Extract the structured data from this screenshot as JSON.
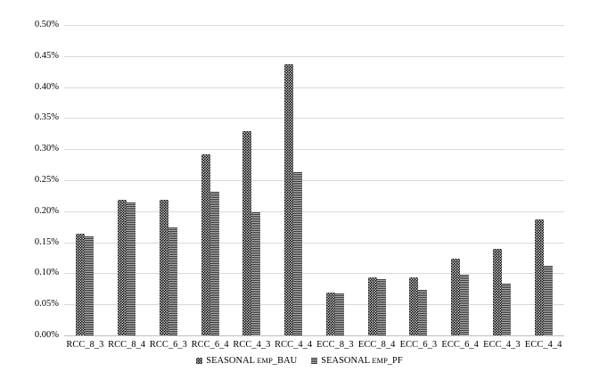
{
  "chart": {
    "background": "#ffffff",
    "text_color": "#000000",
    "gridline_color": "#d9d9d9",
    "axisline_color": "#bfbfbf",
    "bau_pattern": "black-dotted",
    "pf_pattern": "gray-horizontal-stripes"
  },
  "chart_data": {
    "type": "bar",
    "title": "",
    "xlabel": "",
    "ylabel": "",
    "grid": "horizontal",
    "legend_position": "bottom-center",
    "ylim_pct": [
      0,
      0.5
    ],
    "y_tick_step_pct": 0.05,
    "y_tick_labels": [
      "0.00%",
      "0.05%",
      "0.10%",
      "0.15%",
      "0.20%",
      "0.25%",
      "0.30%",
      "0.35%",
      "0.40%",
      "0.45%",
      "0.50%"
    ],
    "categories": [
      "RCC_8_3",
      "RCC_8_4",
      "RCC_6_3",
      "RCC_6_4",
      "RCC_4_3",
      "RCC_4_4",
      "ECC_8_3",
      "ECC_8_4",
      "ECC_6_3",
      "ECC_6_4",
      "ECC_4_3",
      "ECC_4_4"
    ],
    "series": [
      {
        "name": "SEASONAL EMP_BAU",
        "pattern": "black-dots",
        "values_pct": [
          0.164,
          0.218,
          0.218,
          0.292,
          0.329,
          0.437,
          0.069,
          0.093,
          0.093,
          0.124,
          0.139,
          0.187
        ]
      },
      {
        "name": "SEASONAL EMP_PF",
        "pattern": "gray-stripes",
        "values_pct": [
          0.16,
          0.214,
          0.174,
          0.232,
          0.198,
          0.263,
          0.067,
          0.091,
          0.074,
          0.098,
          0.084,
          0.112
        ]
      }
    ]
  },
  "legend": {
    "items": [
      {
        "prefix": "SEASONAL ",
        "small_caps": "EMP",
        "suffix": "_BAU",
        "swatch": "black-dots"
      },
      {
        "prefix": "SEASONAL ",
        "small_caps": "EMP",
        "suffix": "_PF",
        "swatch": "gray-stripes"
      }
    ]
  }
}
